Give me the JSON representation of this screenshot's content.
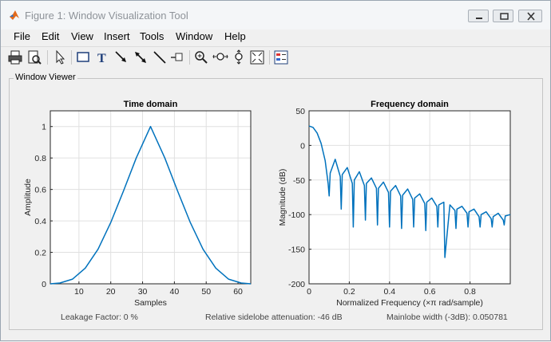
{
  "window": {
    "title": "Figure 1: Window Visualization Tool",
    "icon": "matlab-icon",
    "controls": [
      "minimize-icon",
      "restore-icon",
      "close-icon"
    ]
  },
  "menu": [
    "File",
    "Edit",
    "View",
    "Insert",
    "Tools",
    "Window",
    "Help"
  ],
  "toolbar": [
    "print-icon",
    "print-preview-icon",
    "select-arrow-icon",
    "rectangle-icon",
    "text-icon",
    "arrow-icon",
    "double-arrow-icon",
    "line-icon",
    "pin-icon",
    "zoom-in-icon",
    "pan-icon",
    "rotate-icon",
    "full-view-icon",
    "legend-icon"
  ],
  "panel": {
    "title": "Window Viewer"
  },
  "status": {
    "leakage": "Leakage Factor: 0 %",
    "sidelobe": "Relative sidelobe attenuation: -46 dB",
    "mainlobe": "Mainlobe width (-3dB): 0.050781"
  },
  "colors": {
    "line": "#0072bd",
    "axes_bg": "#ffffff",
    "grid": "#e0e0e0"
  },
  "chart_data": [
    {
      "type": "line",
      "title": "Time domain",
      "xlabel": "Samples",
      "ylabel": "Amplitude",
      "xlim": [
        1,
        64
      ],
      "ylim": [
        0,
        1.1
      ],
      "xticks": [
        10,
        20,
        30,
        40,
        50,
        60
      ],
      "yticks": [
        0,
        0.2,
        0.4,
        0.6,
        0.8,
        1
      ],
      "grid": true,
      "series": [
        {
          "x": [
            1,
            4,
            8,
            12,
            16,
            20,
            24,
            28,
            32.5,
            37,
            41,
            45,
            49,
            53,
            57,
            61,
            64
          ],
          "y": [
            0,
            0.005,
            0.03,
            0.1,
            0.22,
            0.39,
            0.59,
            0.8,
            1.0,
            0.8,
            0.59,
            0.39,
            0.22,
            0.1,
            0.03,
            0.005,
            0
          ]
        }
      ]
    },
    {
      "type": "line",
      "title": "Frequency domain",
      "xlabel": "Normalized Frequency  (×π rad/sample)",
      "ylabel": "Magnitude (dB)",
      "xlim": [
        0,
        1
      ],
      "ylim": [
        -200,
        50
      ],
      "xticks": [
        0,
        0.2,
        0.4,
        0.6,
        0.8
      ],
      "yticks": [
        -200,
        -150,
        -100,
        -50,
        0,
        50
      ],
      "grid": true,
      "series": [
        {
          "x": [
            0,
            0.02,
            0.04,
            0.06,
            0.08,
            0.095,
            0.1,
            0.105,
            0.13,
            0.155,
            0.16,
            0.165,
            0.19,
            0.215,
            0.22,
            0.225,
            0.25,
            0.275,
            0.28,
            0.285,
            0.31,
            0.335,
            0.34,
            0.345,
            0.37,
            0.395,
            0.4,
            0.405,
            0.43,
            0.455,
            0.46,
            0.465,
            0.49,
            0.515,
            0.52,
            0.525,
            0.55,
            0.575,
            0.58,
            0.585,
            0.61,
            0.635,
            0.64,
            0.645,
            0.67,
            0.675,
            0.7,
            0.725,
            0.73,
            0.735,
            0.76,
            0.785,
            0.79,
            0.795,
            0.82,
            0.845,
            0.85,
            0.855,
            0.88,
            0.905,
            0.91,
            0.915,
            0.94,
            0.965,
            0.97,
            0.975,
            1.0
          ],
          "y": [
            28,
            26,
            18,
            3,
            -22,
            -55,
            -73,
            -40,
            -20,
            -45,
            -92,
            -42,
            -32,
            -55,
            -118,
            -50,
            -38,
            -58,
            -108,
            -55,
            -47,
            -62,
            -115,
            -62,
            -53,
            -68,
            -118,
            -66,
            -58,
            -73,
            -120,
            -72,
            -63,
            -78,
            -118,
            -76,
            -70,
            -84,
            -123,
            -82,
            -76,
            -88,
            -118,
            -86,
            -82,
            -162,
            -86,
            -94,
            -120,
            -92,
            -88,
            -98,
            -118,
            -96,
            -92,
            -103,
            -118,
            -100,
            -96,
            -106,
            -118,
            -103,
            -98,
            -108,
            -115,
            -102,
            -100
          ]
        }
      ]
    }
  ]
}
